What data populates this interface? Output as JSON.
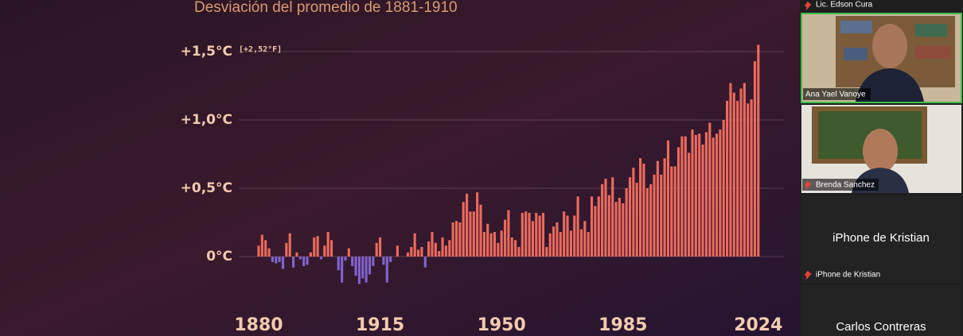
{
  "chart_data": {
    "type": "bar",
    "title": "Desviación del promedio de 1881-1910",
    "annotation": "[+2,52°F]",
    "x": [
      1880,
      1881,
      1882,
      1883,
      1884,
      1885,
      1886,
      1887,
      1888,
      1889,
      1890,
      1891,
      1892,
      1893,
      1894,
      1895,
      1896,
      1897,
      1898,
      1899,
      1900,
      1901,
      1902,
      1903,
      1904,
      1905,
      1906,
      1907,
      1908,
      1909,
      1910,
      1911,
      1912,
      1913,
      1914,
      1915,
      1916,
      1917,
      1918,
      1919,
      1920,
      1921,
      1922,
      1923,
      1924,
      1925,
      1926,
      1927,
      1928,
      1929,
      1930,
      1931,
      1932,
      1933,
      1934,
      1935,
      1936,
      1937,
      1938,
      1939,
      1940,
      1941,
      1942,
      1943,
      1944,
      1945,
      1946,
      1947,
      1948,
      1949,
      1950,
      1951,
      1952,
      1953,
      1954,
      1955,
      1956,
      1957,
      1958,
      1959,
      1960,
      1961,
      1962,
      1963,
      1964,
      1965,
      1966,
      1967,
      1968,
      1969,
      1970,
      1971,
      1972,
      1973,
      1974,
      1975,
      1976,
      1977,
      1978,
      1979,
      1980,
      1981,
      1982,
      1983,
      1984,
      1985,
      1986,
      1987,
      1988,
      1989,
      1990,
      1991,
      1992,
      1993,
      1994,
      1995,
      1996,
      1997,
      1998,
      1999,
      2000,
      2001,
      2002,
      2003,
      2004,
      2005,
      2006,
      2007,
      2008,
      2009,
      2010,
      2011,
      2012,
      2013,
      2014,
      2015,
      2016,
      2017,
      2018,
      2019,
      2020,
      2021,
      2022,
      2023,
      2024
    ],
    "values": [
      0.08,
      0.16,
      0.12,
      0.06,
      -0.04,
      -0.05,
      -0.04,
      -0.09,
      0.1,
      0.17,
      -0.08,
      0.03,
      -0.02,
      -0.07,
      -0.06,
      0.03,
      0.14,
      0.15,
      -0.02,
      0.08,
      0.18,
      0.12,
      0.0,
      -0.1,
      -0.19,
      -0.03,
      0.06,
      -0.07,
      -0.14,
      -0.2,
      -0.16,
      -0.19,
      -0.13,
      -0.07,
      0.1,
      0.14,
      -0.06,
      -0.19,
      -0.04,
      0.0,
      0.08,
      0.0,
      0.0,
      0.03,
      0.07,
      0.17,
      0.05,
      0.07,
      -0.08,
      0.11,
      0.18,
      0.1,
      0.04,
      0.14,
      0.08,
      0.12,
      0.25,
      0.26,
      0.25,
      0.4,
      0.46,
      0.33,
      0.33,
      0.47,
      0.38,
      0.18,
      0.24,
      0.17,
      0.18,
      0.1,
      0.19,
      0.27,
      0.34,
      0.14,
      0.12,
      0.07,
      0.32,
      0.33,
      0.32,
      0.26,
      0.32,
      0.3,
      0.32,
      0.07,
      0.17,
      0.22,
      0.25,
      0.18,
      0.33,
      0.3,
      0.19,
      0.3,
      0.44,
      0.2,
      0.26,
      0.18,
      0.44,
      0.37,
      0.44,
      0.53,
      0.57,
      0.45,
      0.58,
      0.4,
      0.43,
      0.39,
      0.5,
      0.58,
      0.65,
      0.54,
      0.72,
      0.68,
      0.5,
      0.53,
      0.6,
      0.7,
      0.6,
      0.72,
      0.85,
      0.66,
      0.66,
      0.8,
      0.88,
      0.88,
      0.76,
      0.93,
      0.89,
      0.9,
      0.82,
      0.91,
      0.98,
      0.87,
      0.9,
      0.93,
      1.0,
      1.14,
      1.27,
      1.2,
      1.14,
      1.23,
      1.27,
      1.12,
      1.15,
      1.43,
      1.55
    ],
    "color": "#ec6a5c",
    "negative_color": "#8163cf",
    "xlim": [
      1879.5,
      2024.5
    ],
    "xticks": [
      1880,
      1915,
      1950,
      1985,
      2024
    ],
    "ylim": [
      -0.25,
      1.6
    ],
    "yticks": [
      {
        "value": 0,
        "label": "0°C"
      },
      {
        "value": 0.5,
        "label": "+0,5°C"
      },
      {
        "value": 1.0,
        "label": "+1,0°C"
      },
      {
        "value": 1.5,
        "label": "+1,5°C"
      }
    ],
    "grid": true
  },
  "participants": {
    "top_label": "Lic. Edson Cura",
    "tiles": [
      {
        "label": "Ana Yael Vanoye"
      },
      {
        "label": "Brenda Sanchez"
      },
      {
        "name": "iPhone de Kristian",
        "label": "iPhone de Kristian"
      },
      {
        "name": "Carlos Contreras"
      }
    ]
  }
}
